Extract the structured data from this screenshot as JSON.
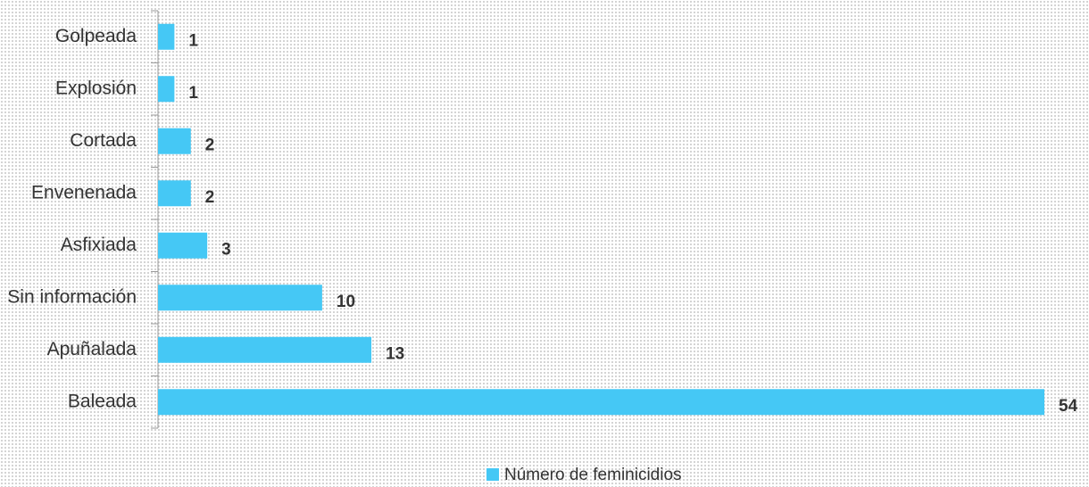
{
  "chart_data": {
    "type": "barh",
    "categories": [
      "Golpeada",
      "Explosión",
      "Cortada",
      "Envenenada",
      "Asfixiada",
      "Sin información",
      "Apuñalada",
      "Baleada"
    ],
    "series": [
      {
        "name": "Número de feminicidios",
        "color": "#45c8f5",
        "values": [
          1,
          1,
          2,
          2,
          3,
          10,
          13,
          54
        ]
      }
    ],
    "legend": "bottom"
  }
}
